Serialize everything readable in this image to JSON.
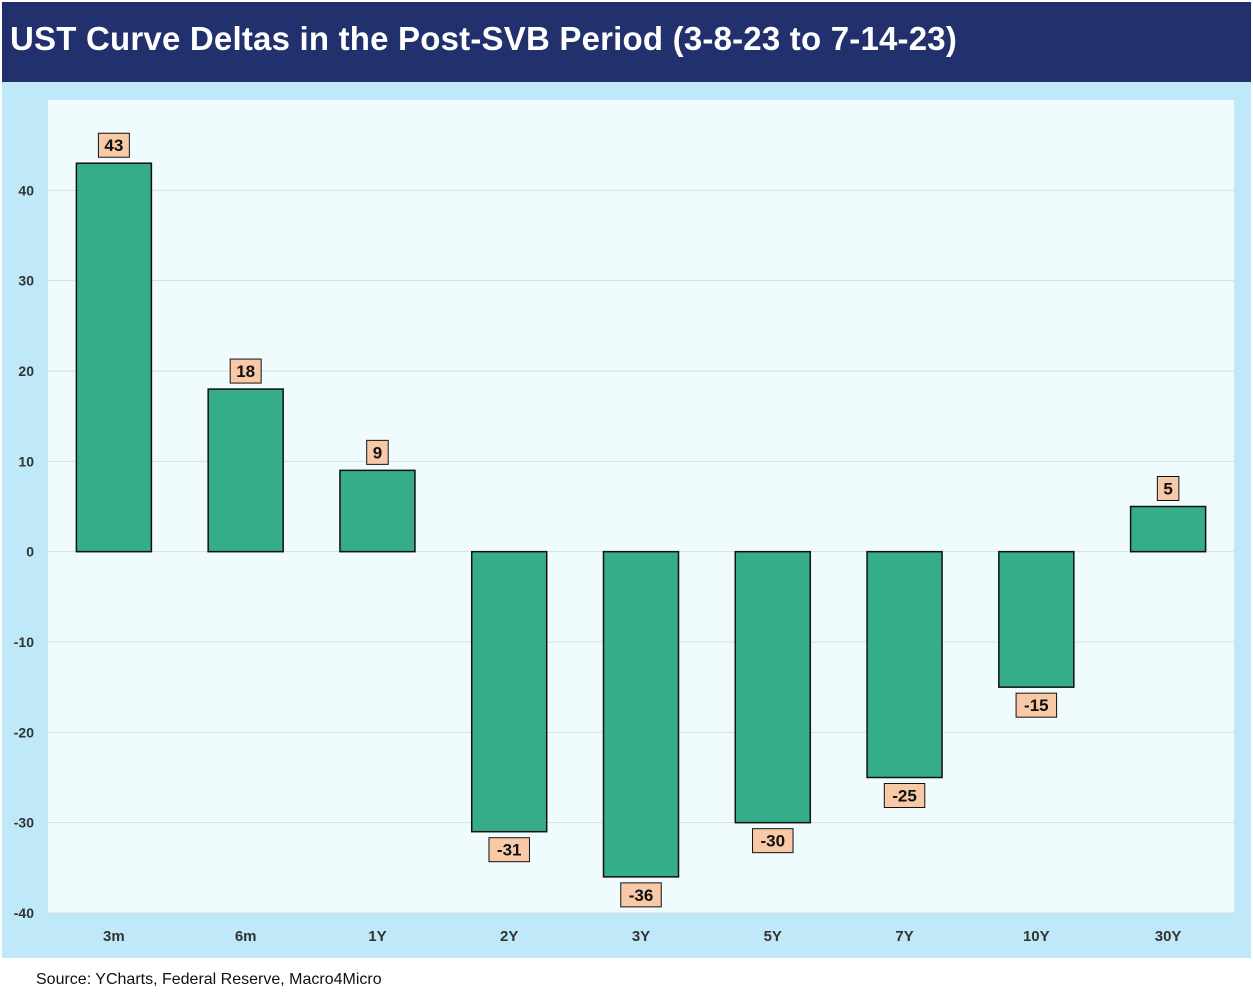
{
  "chart_data": {
    "type": "bar",
    "title": "UST Curve Deltas in the Post-SVB Period (3-8-23 to 7-14-23)",
    "xlabel": "",
    "ylabel": "",
    "categories": [
      "3m",
      "6m",
      "1Y",
      "2Y",
      "3Y",
      "5Y",
      "7Y",
      "10Y",
      "30Y"
    ],
    "values": [
      43,
      18,
      9,
      -31,
      -36,
      -30,
      -25,
      -15,
      5
    ],
    "ylim": [
      -40,
      50
    ],
    "yticks": [
      -40,
      -30,
      -20,
      -10,
      0,
      10,
      20,
      30,
      40
    ],
    "grid": true,
    "legend": "none",
    "colors": {
      "bar": "#35ad8a",
      "bar_edge": "#111111",
      "label_bg": "#f7c9a6",
      "plot_bg": "#effbfc",
      "frame_bg": "#bfe9f8",
      "grid": "#d6dfe3"
    }
  },
  "source": "Source: YCharts, Federal Reserve, Macro4Micro"
}
